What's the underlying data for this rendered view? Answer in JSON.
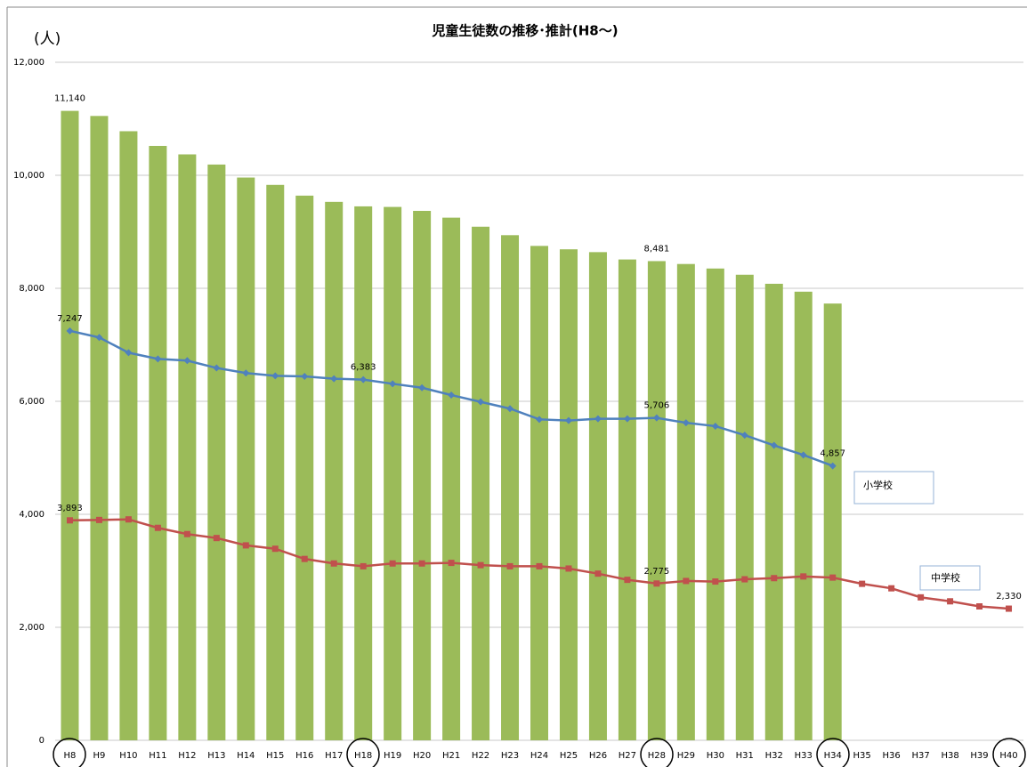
{
  "chart_data": {
    "type": "bar_line",
    "title": "児童生徒数の推移･推計(H8～)",
    "y_unit": "(人)",
    "categories": [
      "H8",
      "H9",
      "H10",
      "H11",
      "H12",
      "H13",
      "H14",
      "H15",
      "H16",
      "H17",
      "H18",
      "H19",
      "H20",
      "H21",
      "H22",
      "H23",
      "H24",
      "H25",
      "H26",
      "H27",
      "H28",
      "H29",
      "H30",
      "H31",
      "H32",
      "H33",
      "H34",
      "H35",
      "H36",
      "H37",
      "H38",
      "H39",
      "H40"
    ],
    "series": [
      {
        "type": "bar",
        "color": "#9bbb59",
        "values": [
          11140,
          11050,
          10780,
          10520,
          10370,
          10190,
          9960,
          9830,
          9640,
          9530,
          9450,
          9440,
          9370,
          9250,
          9090,
          8940,
          8750,
          8690,
          8640,
          8510,
          8481,
          8430,
          8350,
          8240,
          8080,
          7940,
          7730,
          null,
          null,
          null,
          null,
          null,
          null
        ],
        "value_labels": [
          "11,140",
          null,
          null,
          null,
          null,
          null,
          null,
          null,
          null,
          null,
          null,
          null,
          null,
          null,
          null,
          null,
          null,
          null,
          null,
          null,
          "8,481",
          null,
          null,
          null,
          null,
          null,
          null,
          null,
          null,
          null,
          null,
          null,
          null
        ]
      },
      {
        "type": "line",
        "name": "小学校",
        "color": "#4f81bd",
        "marker": "diamond",
        "values": [
          7247,
          7130,
          6860,
          6750,
          6720,
          6590,
          6500,
          6450,
          6440,
          6400,
          6383,
          6310,
          6240,
          6110,
          5990,
          5870,
          5680,
          5660,
          5690,
          5690,
          5706,
          5620,
          5560,
          5400,
          5220,
          5050,
          4857,
          null,
          null,
          null,
          null,
          null,
          null
        ],
        "value_labels": [
          "7,247",
          null,
          null,
          null,
          null,
          null,
          null,
          null,
          null,
          null,
          "6,383",
          null,
          null,
          null,
          null,
          null,
          null,
          null,
          null,
          null,
          "5,706",
          null,
          null,
          null,
          null,
          null,
          "4,857",
          null,
          null,
          null,
          null,
          null,
          null
        ]
      },
      {
        "type": "line",
        "name": "中学校",
        "color": "#c0504d",
        "marker": "square",
        "values": [
          3893,
          3900,
          3910,
          3760,
          3650,
          3580,
          3450,
          3390,
          3210,
          3130,
          3080,
          3130,
          3130,
          3140,
          3100,
          3080,
          3080,
          3040,
          2950,
          2840,
          2775,
          2820,
          2810,
          2850,
          2870,
          2900,
          2880,
          2770,
          2690,
          2530,
          2460,
          2370,
          2330
        ],
        "value_labels": [
          "3,893",
          null,
          null,
          null,
          null,
          null,
          null,
          null,
          null,
          null,
          null,
          null,
          null,
          null,
          null,
          null,
          null,
          null,
          null,
          null,
          "2,775",
          null,
          null,
          null,
          null,
          null,
          null,
          null,
          null,
          null,
          null,
          null,
          "2,330"
        ]
      }
    ],
    "ylim": [
      0,
      12000
    ],
    "yticks": [
      0,
      {
        "value": 2000,
        "label": "2,000"
      },
      {
        "value": 4000,
        "label": "4,000"
      },
      {
        "value": 6000,
        "label": "6,000"
      },
      {
        "value": 8000,
        "label": "8,000"
      },
      {
        "value": 10000,
        "label": "10,000"
      },
      {
        "value": 12000,
        "label": "12,000"
      }
    ],
    "grid": true
  }
}
